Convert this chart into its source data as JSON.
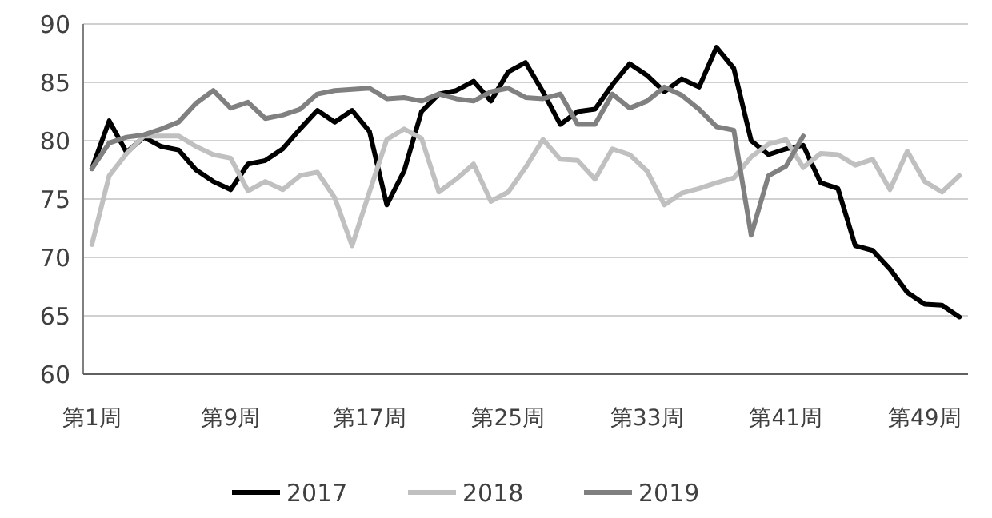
{
  "chart_data": {
    "type": "line",
    "categories": [
      "第1周",
      null,
      null,
      null,
      null,
      null,
      null,
      null,
      "第9周",
      null,
      null,
      null,
      null,
      null,
      null,
      null,
      "第17周",
      null,
      null,
      null,
      null,
      null,
      null,
      null,
      "第25周",
      null,
      null,
      null,
      null,
      null,
      null,
      null,
      "第33周",
      null,
      null,
      null,
      null,
      null,
      null,
      null,
      "第41周",
      null,
      null,
      null,
      null,
      null,
      null,
      null,
      "第49周",
      null,
      null
    ],
    "series": [
      {
        "name": "2017",
        "color": "#000000",
        "values": [
          77.6,
          81.7,
          79.0,
          80.3,
          79.5,
          79.2,
          77.5,
          76.5,
          75.8,
          78.0,
          78.3,
          79.3,
          81.0,
          82.6,
          81.6,
          82.6,
          80.8,
          74.5,
          77.4,
          82.5,
          84.0,
          84.3,
          85.1,
          83.4,
          85.9,
          86.7,
          84.2,
          81.4,
          82.5,
          82.7,
          84.8,
          86.6,
          85.6,
          84.2,
          85.3,
          84.6,
          88.0,
          86.2,
          80.0,
          78.8,
          79.3,
          79.6,
          76.4,
          75.9,
          71.0,
          70.6,
          69.0,
          67.0,
          66.0,
          65.9,
          64.9
        ]
      },
      {
        "name": "2018",
        "color": "#c0c0c0",
        "values": [
          71.1,
          77.0,
          78.9,
          80.4,
          80.4,
          80.4,
          79.5,
          78.8,
          78.5,
          75.7,
          76.5,
          75.8,
          77.0,
          77.3,
          75.1,
          71.0,
          75.6,
          80.1,
          81.0,
          80.2,
          75.6,
          76.7,
          78.0,
          74.8,
          75.6,
          77.7,
          80.1,
          78.4,
          78.3,
          76.7,
          79.3,
          78.8,
          77.4,
          74.5,
          75.5,
          75.9,
          76.4,
          76.8,
          78.6,
          79.7,
          80.1,
          77.7,
          78.9,
          78.8,
          77.9,
          78.4,
          75.8,
          79.1,
          76.5,
          75.6,
          77.0
        ]
      },
      {
        "name": "2019",
        "color": "#808080",
        "values": [
          77.6,
          79.8,
          80.3,
          80.5,
          81.0,
          81.6,
          83.2,
          84.3,
          82.8,
          83.3,
          81.9,
          82.2,
          82.7,
          84.0,
          84.3,
          84.4,
          84.5,
          83.6,
          83.7,
          83.4,
          84.0,
          83.6,
          83.4,
          84.2,
          84.5,
          83.7,
          83.6,
          84.0,
          81.4,
          81.4,
          84.0,
          82.8,
          83.4,
          84.6,
          83.9,
          82.7,
          81.2,
          80.9,
          71.9,
          77.0,
          77.8,
          80.4,
          null,
          null,
          null,
          null,
          null,
          null,
          null,
          null,
          null
        ]
      }
    ],
    "ylim": [
      60,
      90
    ],
    "yticks": [
      60,
      65,
      70,
      75,
      80,
      85,
      90
    ],
    "grid": "y",
    "legend": "bottom",
    "marker": "none",
    "line_style": "solid"
  }
}
